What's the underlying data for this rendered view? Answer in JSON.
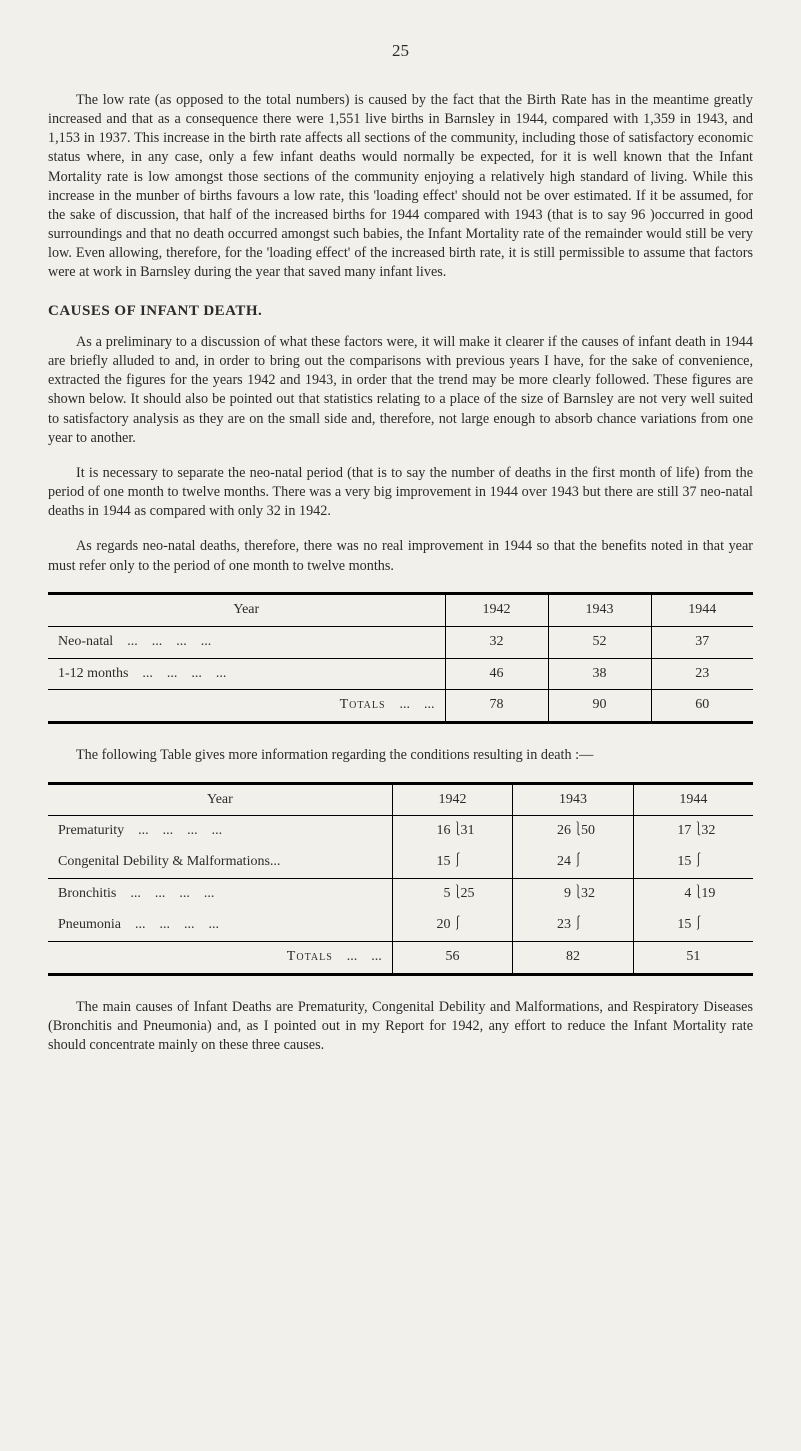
{
  "page_number": "25",
  "paragraphs": {
    "p1": "The low rate (as opposed to the total numbers) is caused by the fact that the Birth Rate has in the meantime greatly increased and that as a consequence there were 1,551 live births in Barnsley in 1944, compared with 1,359 in 1943, and 1,153 in 1937. This increase in the birth rate affects all sections of the community, including those of satisfactory economic status where, in any case, only a few infant deaths would normally be expected, for it is well known that the Infant Mortality rate is low amongst those sections of the community enjoying a relatively high standard of living. While this increase in the munber of births favours a low rate, this 'loading effect' should not be over estimated. If it be assumed, for the sake of discussion, that half of the increased births for 1944 compared with 1943 (that is to say 96 )occurred in good surroundings and that no death occurred amongst such babies, the Infant Mortality rate of the remainder would still be very low. Even allowing, therefore, for the 'loading effect' of the increased birth rate, it is still permissible to assume that factors were at work in Barnsley during the year that saved many infant lives.",
    "p2": "As a preliminary to a discussion of what these factors were, it will make it clearer if the causes of infant death in 1944 are briefly alluded to and, in order to bring out the comparisons with previous years I have, for the sake of convenience, extracted the figures for the years 1942 and 1943, in order that the trend may be more clearly followed. These figures are shown below. It should also be pointed out that statistics relating to a place of the size of Barnsley are not very well suited to satisfactory analysis as they are on the small side and, therefore, not large enough to absorb chance variations from one year to another.",
    "p3": "It is necessary to separate the neo-natal period (that is to say the number of deaths in the first month of life) from the period of one month to twelve months. There was a very big improvement in 1944 over 1943 but there are still 37 neo-natal deaths in 1944 as compared with only 32 in 1942.",
    "p4": "As regards neo-natal deaths, therefore, there was no real improvement in 1944 so that the benefits noted in that year must refer only to the period of one month to twelve months.",
    "p5": "The following Table gives more information regarding the conditions resulting in death :—",
    "p6": "The main causes of Infant Deaths are Prematurity, Congenital Debility and Malformations, and Respiratory Diseases (Bronchitis and Pneumonia) and, as I pointed out in my Report for 1942, any effort to reduce the Infant Mortality rate should concentrate mainly on these three causes."
  },
  "heading1": "CAUSES OF INFANT DEATH.",
  "table1": {
    "type": "table",
    "columns": [
      "Year",
      "1942",
      "1943",
      "1944"
    ],
    "rows": [
      {
        "label": "Neo-natal",
        "v": [
          "32",
          "52",
          "37"
        ]
      },
      {
        "label": "1-12 months",
        "v": [
          "46",
          "38",
          "23"
        ]
      }
    ],
    "totals_label": "Totals",
    "totals": [
      "78",
      "90",
      "60"
    ],
    "background_color": "#f2f0eb",
    "border_color": "#000000",
    "font_size": 14
  },
  "table2": {
    "type": "table",
    "columns": [
      "Year",
      "1942",
      "1943",
      "1944"
    ],
    "rows": [
      {
        "label": "Prematurity",
        "pairs": [
          [
            "16",
            "31"
          ],
          [
            "26",
            "50"
          ],
          [
            "17",
            "32"
          ]
        ]
      },
      {
        "label": "Congenital Debility & Malformations...",
        "pairs": [
          [
            "15",
            ""
          ],
          [
            "24",
            ""
          ],
          [
            "15",
            ""
          ]
        ]
      },
      {
        "label": "Bronchitis",
        "pairs": [
          [
            "5",
            "25"
          ],
          [
            "9",
            "32"
          ],
          [
            "4",
            "19"
          ]
        ]
      },
      {
        "label": "Pneumonia",
        "pairs": [
          [
            "20",
            ""
          ],
          [
            "23",
            ""
          ],
          [
            "15",
            ""
          ]
        ]
      }
    ],
    "totals_label": "Totals",
    "totals": [
      "56",
      "82",
      "51"
    ],
    "background_color": "#f2f0eb",
    "border_color": "#000000",
    "font_size": 14
  },
  "labels": {
    "year": "Year",
    "totals": "Totals",
    "dots": "...   ...   ...   ..."
  }
}
